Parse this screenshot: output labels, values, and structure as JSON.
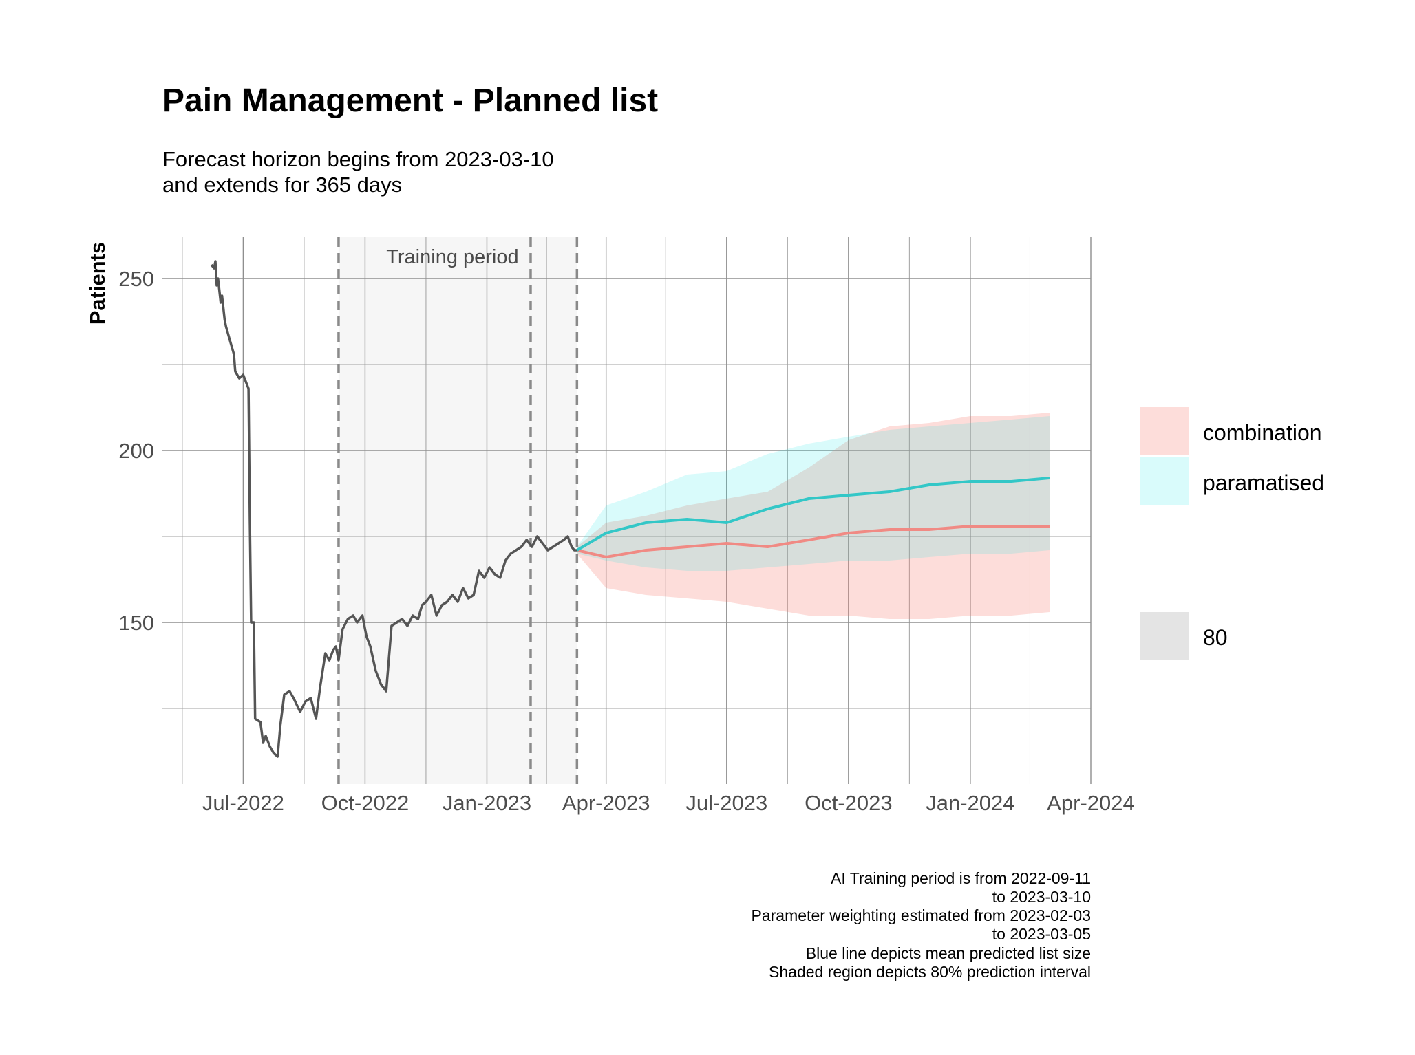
{
  "chart_data": {
    "type": "line",
    "title": "Pain Management - Planned list",
    "subtitle": [
      "Forecast horizon begins from 2023-03-10",
      "and extends for 365 days"
    ],
    "ylabel": "Patients",
    "xlabel": "",
    "x_axis_type": "date",
    "xlim": [
      "2022-05-01",
      "2024-04-01"
    ],
    "ylim": [
      103,
      262
    ],
    "x_ticks": [
      {
        "date": "2022-07-01",
        "label": "Jul-2022"
      },
      {
        "date": "2022-10-01",
        "label": "Oct-2022"
      },
      {
        "date": "2023-01-01",
        "label": "Jan-2023"
      },
      {
        "date": "2023-04-01",
        "label": "Apr-2023"
      },
      {
        "date": "2023-07-01",
        "label": "Jul-2023"
      },
      {
        "date": "2023-10-01",
        "label": "Oct-2023"
      },
      {
        "date": "2024-01-01",
        "label": "Jan-2024"
      },
      {
        "date": "2024-04-01",
        "label": "Apr-2024"
      }
    ],
    "y_ticks": [
      {
        "value": 150,
        "label": "150"
      },
      {
        "value": 200,
        "label": "200"
      },
      {
        "value": 250,
        "label": "250"
      }
    ],
    "minor_x_dates": [
      "2022-05-16",
      "2022-08-16",
      "2022-11-16",
      "2023-02-15",
      "2023-05-16",
      "2023-08-16",
      "2023-11-16",
      "2024-02-15"
    ],
    "minor_y_values": [
      125,
      175,
      225
    ],
    "grid": true,
    "training_period": {
      "start": "2022-09-11",
      "end": "2023-03-10",
      "label": "Training period"
    },
    "vlines": [
      "2022-09-11",
      "2023-02-03",
      "2023-03-10"
    ],
    "series": [
      {
        "kind": "observed",
        "color": "#555555",
        "x": [
          "2022-06-07",
          "2022-06-09",
          "2022-06-10",
          "2022-06-11",
          "2022-06-12",
          "2022-06-14",
          "2022-06-15",
          "2022-06-17",
          "2022-06-18",
          "2022-06-21",
          "2022-06-24",
          "2022-06-25",
          "2022-06-28",
          "2022-07-01",
          "2022-07-03",
          "2022-07-05",
          "2022-07-06",
          "2022-07-07",
          "2022-07-09",
          "2022-07-10",
          "2022-07-14",
          "2022-07-16",
          "2022-07-18",
          "2022-07-21",
          "2022-07-24",
          "2022-07-27",
          "2022-07-29",
          "2022-08-01",
          "2022-08-05",
          "2022-08-08",
          "2022-08-13",
          "2022-08-17",
          "2022-08-21",
          "2022-08-25",
          "2022-08-28",
          "2022-09-01",
          "2022-09-04",
          "2022-09-07",
          "2022-09-09",
          "2022-09-11",
          "2022-09-14",
          "2022-09-18",
          "2022-09-22",
          "2022-09-25",
          "2022-09-29",
          "2022-10-02",
          "2022-10-05",
          "2022-10-09",
          "2022-10-13",
          "2022-10-17",
          "2022-10-21",
          "2022-10-25",
          "2022-10-29",
          "2022-11-02",
          "2022-11-06",
          "2022-11-10",
          "2022-11-13",
          "2022-11-16",
          "2022-11-20",
          "2022-11-24",
          "2022-11-28",
          "2022-12-02",
          "2022-12-06",
          "2022-12-10",
          "2022-12-14",
          "2022-12-18",
          "2022-12-22",
          "2022-12-26",
          "2022-12-30",
          "2023-01-03",
          "2023-01-07",
          "2023-01-11",
          "2023-01-15",
          "2023-01-19",
          "2023-01-23",
          "2023-01-27",
          "2023-01-31",
          "2023-02-04",
          "2023-02-08",
          "2023-02-12",
          "2023-02-16",
          "2023-02-20",
          "2023-02-24",
          "2023-02-28",
          "2023-03-03",
          "2023-03-06",
          "2023-03-08",
          "2023-03-10"
        ],
        "y": [
          254,
          253,
          255,
          248,
          250,
          243,
          245,
          238,
          236,
          232,
          228,
          223,
          221,
          222,
          220,
          218,
          180,
          150,
          150,
          122,
          121,
          115,
          117,
          114,
          112,
          111,
          120,
          129,
          130,
          128,
          124,
          127,
          128,
          122,
          131,
          141,
          139,
          142,
          143,
          139,
          148,
          151,
          152,
          150,
          152,
          146,
          143,
          136,
          132,
          130,
          149,
          150,
          151,
          149,
          152,
          151,
          155,
          156,
          158,
          152,
          155,
          156,
          158,
          156,
          160,
          157,
          158,
          165,
          163,
          166,
          164,
          163,
          168,
          170,
          171,
          172,
          174,
          172,
          175,
          173,
          171,
          172,
          173,
          174,
          175,
          172,
          171,
          171
        ]
      },
      {
        "name": "combination",
        "color": "#f08a84",
        "band_color": "#f8766d",
        "band_opacity": 0.25,
        "x": [
          "2023-03-10",
          "2023-04-01",
          "2023-05-01",
          "2023-06-01",
          "2023-07-01",
          "2023-08-01",
          "2023-09-01",
          "2023-10-01",
          "2023-11-01",
          "2023-12-01",
          "2024-01-01",
          "2024-02-01",
          "2024-03-01"
        ],
        "y": [
          171,
          169,
          171,
          172,
          173,
          172,
          174,
          176,
          177,
          177,
          178,
          178,
          178
        ],
        "lower": [
          170,
          160,
          158,
          157,
          156,
          154,
          152,
          152,
          151,
          151,
          152,
          152,
          153
        ],
        "upper": [
          172,
          179,
          181,
          184,
          186,
          188,
          195,
          203,
          207,
          208,
          210,
          210,
          211
        ]
      },
      {
        "name": "paramatised",
        "color": "#33c7c7",
        "band_color": "#00e5e5",
        "band_opacity": 0.15,
        "x": [
          "2023-03-10",
          "2023-04-01",
          "2023-05-01",
          "2023-06-01",
          "2023-07-01",
          "2023-08-01",
          "2023-09-01",
          "2023-10-01",
          "2023-11-01",
          "2023-12-01",
          "2024-01-01",
          "2024-02-01",
          "2024-03-01"
        ],
        "y": [
          171,
          176,
          179,
          180,
          179,
          183,
          186,
          187,
          188,
          190,
          191,
          191,
          192
        ],
        "lower": [
          170,
          168,
          166,
          165,
          165,
          166,
          167,
          168,
          168,
          169,
          170,
          170,
          171
        ],
        "upper": [
          172,
          184,
          188,
          193,
          194,
          199,
          202,
          204,
          206,
          207,
          208,
          209,
          210
        ]
      }
    ],
    "legend": {
      "placement": "right",
      "entries": [
        {
          "label": "combination",
          "color": "#f8766d"
        },
        {
          "label": "paramatised",
          "color": "#00e5e5"
        }
      ],
      "interval_label": "80"
    },
    "caption": [
      "AI Training period is from 2022-09-11",
      "to 2023-03-10",
      "Parameter weighting estimated from 2023-02-03",
      "to 2023-03-05",
      "Blue line depicts mean predicted list size",
      "Shaded region depicts 80% prediction interval"
    ]
  }
}
